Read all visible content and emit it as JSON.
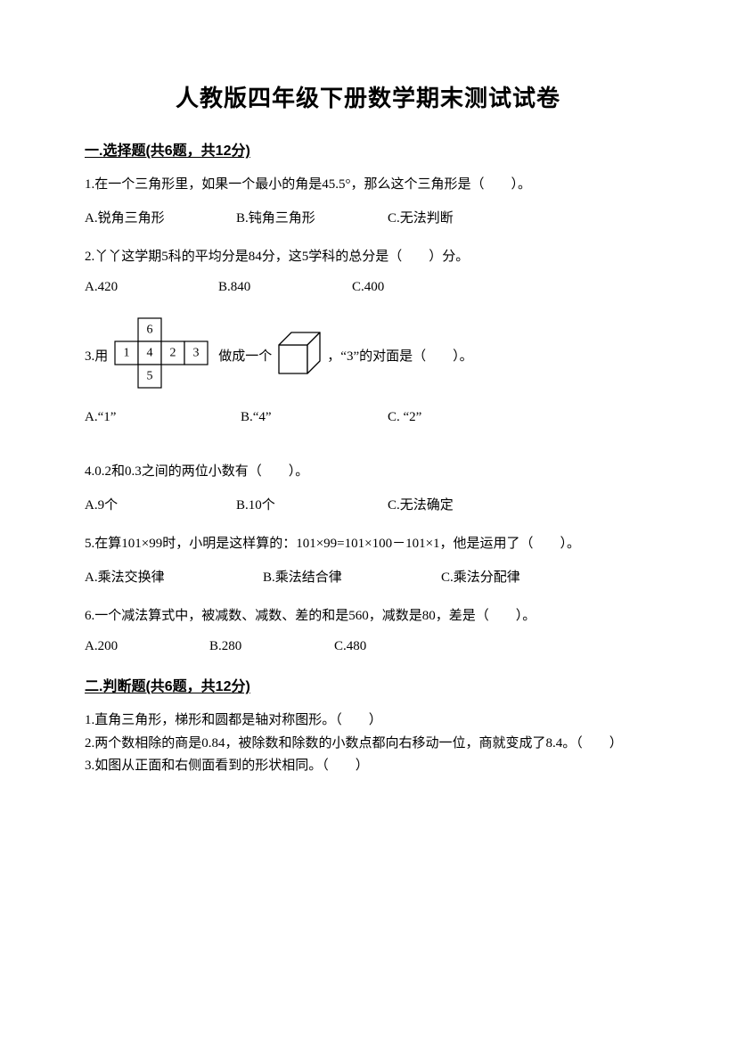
{
  "title": "人教版四年级下册数学期末测试试卷",
  "sections": {
    "s1": {
      "header": "一.选择题(共6题，共12分)",
      "q1": {
        "text": "1.在一个三角形里，如果一个最小的角是45.5°，那么这个三角形是（　　）。",
        "a": "A.锐角三角形",
        "b": "B.钝角三角形",
        "c": "C.无法判断"
      },
      "q2": {
        "text": "2.丫丫这学期5科的平均分是84分，这5学科的总分是（　　）分。",
        "a": "A.420",
        "b": "B.840",
        "c": "C.400"
      },
      "q3": {
        "prefix": "3.用",
        "mid1": "做成一个",
        "mid2": "，“3”的对面是（　　）。",
        "a": "A.“1”",
        "b": "B.“4”",
        "c": "C. “2”",
        "net": {
          "cell": 26,
          "labels": [
            "6",
            "1",
            "4",
            "2",
            "3",
            "5"
          ],
          "stroke": "#000000",
          "fill": "#ffffff",
          "font_size": 14
        },
        "cube": {
          "size": 32,
          "depth": 14,
          "stroke": "#000000"
        }
      },
      "q4": {
        "text": "4.0.2和0.3之间的两位小数有（　　）。",
        "a": "A.9个",
        "b": "B.10个",
        "c": "C.无法确定"
      },
      "q5": {
        "text": "5.在算101×99时，小明是这样算的：101×99=101×100－101×1，他是运用了（　　）。",
        "a": "A.乘法交换律",
        "b": "B.乘法结合律",
        "c": "C.乘法分配律"
      },
      "q6": {
        "text": "6.一个减法算式中，被减数、减数、差的和是560，减数是80，差是（　　）。",
        "a": "A.200",
        "b": "B.280",
        "c": "C.480"
      }
    },
    "s2": {
      "header": "二.判断题(共6题，共12分)",
      "q1": "1.直角三角形，梯形和圆都是轴对称图形。（　　）",
      "q2": "2.两个数相除的商是0.84，被除数和除数的小数点都向右移动一位，商就变成了8.4。（　　）",
      "q3": "3.如图从正面和右侧面看到的形状相同。（　　）"
    }
  },
  "layout": {
    "opt_cols": {
      "c1": 0,
      "c2": 170,
      "c3": 340
    },
    "opt_cols_wide": {
      "c1": 0,
      "c2": 200,
      "c3": 400
    },
    "opt_cols_q2": {
      "c1": 0,
      "c2": 150,
      "c3": 300
    },
    "opt_cols_q3": {
      "c1": 0,
      "c2": 175,
      "c3": 340
    },
    "opt_cols_q6": {
      "c1": 0,
      "c2": 140,
      "c3": 280
    }
  },
  "colors": {
    "text": "#000000",
    "bg": "#ffffff"
  }
}
